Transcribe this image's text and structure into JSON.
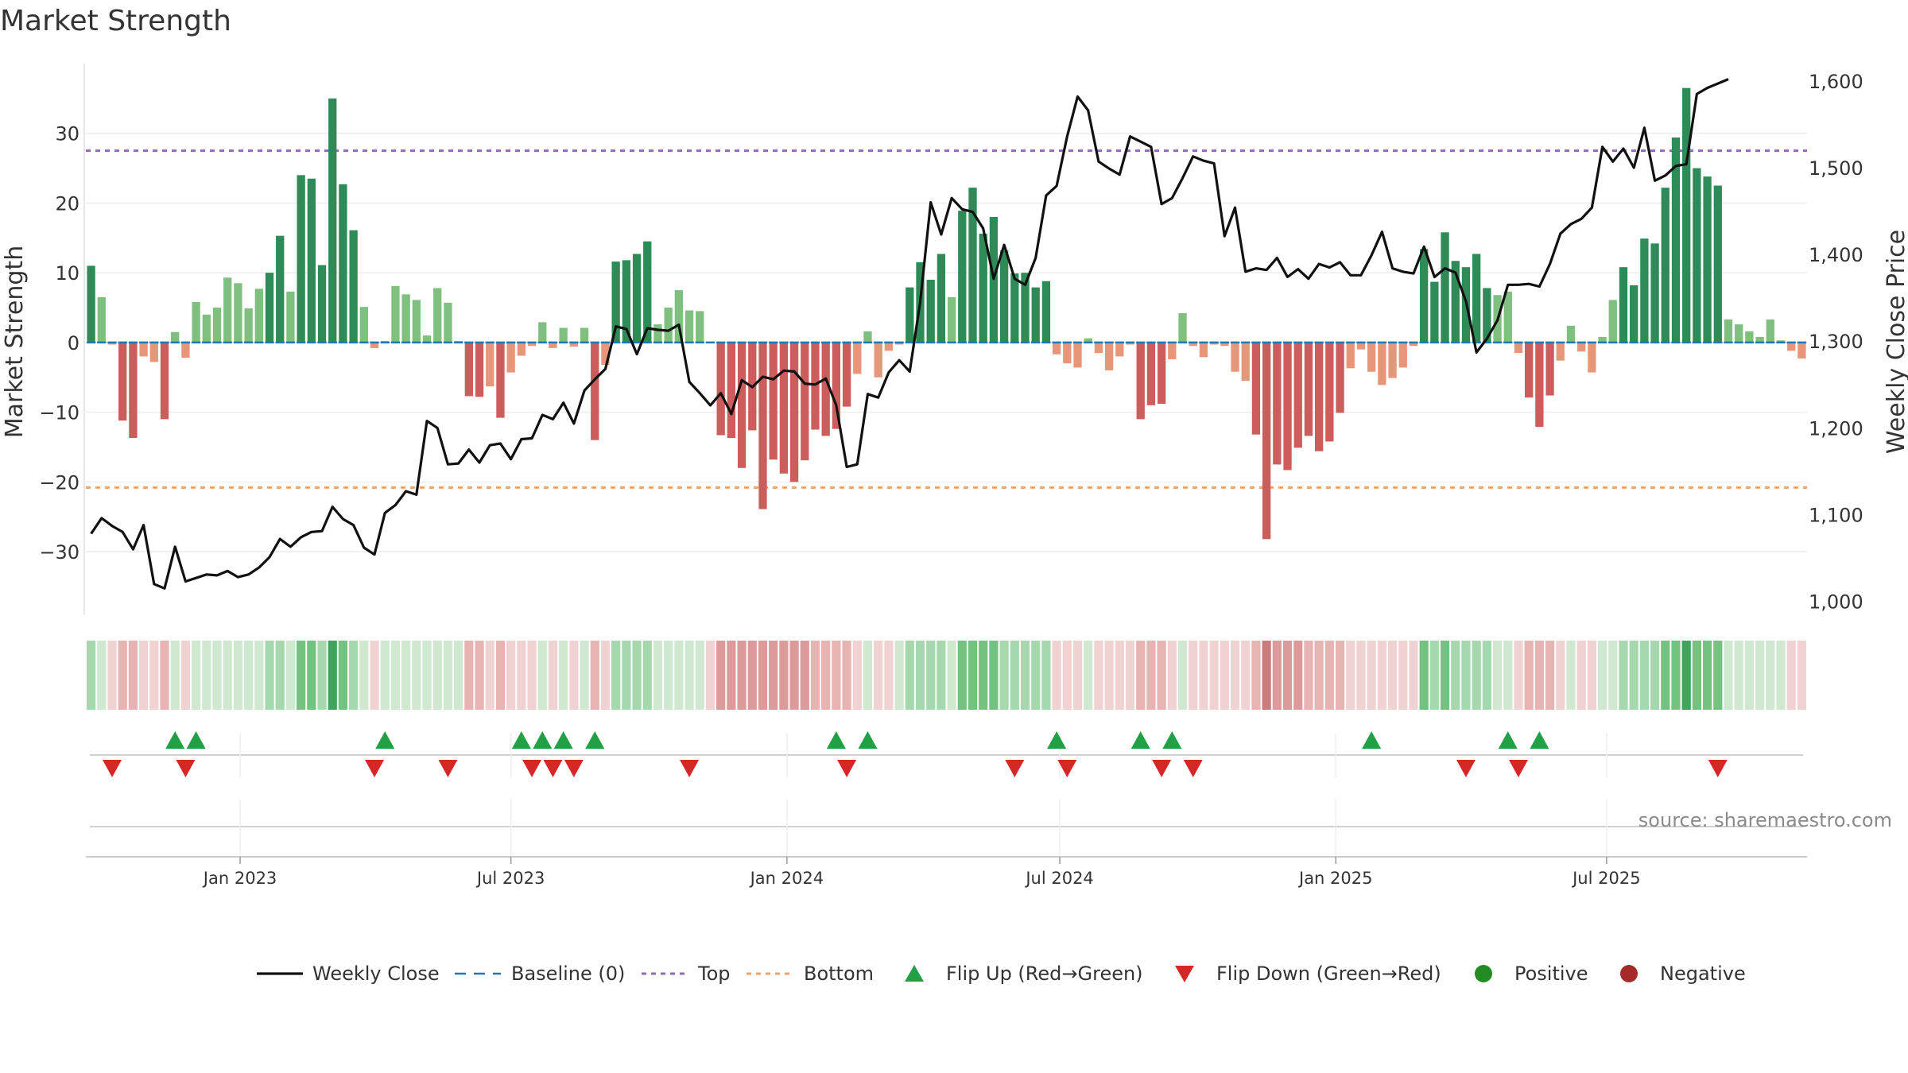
{
  "chart_data": {
    "type": "bar",
    "title": "Market Strength",
    "ylabel": "Market Strength",
    "y2label": "Weekly Close Price",
    "ylim": [
      -39,
      40
    ],
    "y2lim": [
      985,
      1620
    ],
    "yticks": [
      "−30",
      "−20",
      "−10",
      "0",
      "10",
      "20",
      "30"
    ],
    "ytick_values": [
      -30,
      -20,
      -10,
      0,
      10,
      20,
      30
    ],
    "y2ticks": [
      "1,000",
      "1,100",
      "1,200",
      "1,300",
      "1,400",
      "1,500",
      "1,600"
    ],
    "y2tick_values": [
      1000,
      1100,
      1200,
      1300,
      1400,
      1500,
      1600
    ],
    "xticks": [
      "Jan 2023",
      "Jul 2023",
      "Jan 2024",
      "Jul 2024",
      "Jan 2025",
      "Jul 2025"
    ],
    "xtick_index": [
      14.2,
      40.0,
      66.3,
      92.3,
      118.6,
      144.4
    ],
    "top_level": 27.5,
    "bottom_level": -20.8,
    "source": "source: sharemaestro.com",
    "strength": [
      11,
      6.5,
      -0.3,
      -11.2,
      -13.7,
      -2,
      -2.8,
      -11,
      1.5,
      -2.2,
      5.8,
      4,
      5,
      9.3,
      8.5,
      4.9,
      7.7,
      10,
      15.3,
      7.3,
      24,
      23.5,
      11.1,
      35,
      22.7,
      16.1,
      5.1,
      -0.8,
      0.2,
      8.1,
      6.9,
      6.1,
      1,
      7.8,
      5.7,
      0.2,
      -7.7,
      -7.8,
      -6.3,
      -10.8,
      -4.3,
      -1.9,
      -0.5,
      2.9,
      -0.8,
      2.1,
      -0.6,
      2.1,
      -14,
      -3.2,
      11.6,
      11.8,
      12.7,
      14.5,
      2.6,
      5,
      7.5,
      4.6,
      4.5,
      -0.1,
      -13.3,
      -13.7,
      -18,
      -12.6,
      -23.9,
      -16.8,
      -18.8,
      -20,
      -16.9,
      -12.5,
      -13.4,
      -12.4,
      -9.2,
      -4.5,
      1.6,
      -5,
      -1.2,
      -0.3,
      7.9,
      11.5,
      9,
      12.7,
      6.5,
      18.9,
      22.2,
      15.6,
      18,
      13.2,
      9.9,
      10,
      7.9,
      8.8,
      -1.7,
      -3,
      -3.6,
      0.6,
      -1.5,
      -4,
      -2,
      -0.3,
      -11,
      -9,
      -8.8,
      -2.4,
      4.2,
      -0.5,
      -2.1,
      -0.3,
      -0.5,
      -4.2,
      -5.5,
      -13.2,
      -28.2,
      -17.5,
      -18.3,
      -15.1,
      -13.4,
      -15.6,
      -14.2,
      -10.1,
      -3.7,
      -1,
      -4.2,
      -6.1,
      -5.1,
      -3.6,
      -0.5,
      13.4,
      8.7,
      15.8,
      11.7,
      10.8,
      12.7,
      7.8,
      6.8,
      7.3,
      -1.5,
      -7.9,
      -12.1,
      -7.6,
      -2.6,
      2.4,
      -1.3,
      -4.3,
      0.8,
      6.1,
      10.8,
      8.2,
      14.9,
      14.2,
      22.2,
      29.4,
      36.5,
      25,
      23.8,
      22.5,
      3.3,
      2.6,
      1.6,
      0.8,
      3.3,
      0.3,
      -1.2,
      -2.3
    ],
    "intensity": [
      2,
      1,
      -1,
      -2,
      -2,
      -1,
      -1,
      -2,
      1,
      -1,
      1,
      1,
      1,
      1,
      1,
      1,
      1,
      2,
      2,
      1,
      3,
      3,
      2,
      4,
      3,
      2,
      1,
      -1,
      1,
      1,
      1,
      1,
      1,
      1,
      1,
      1,
      -2,
      -2,
      -1,
      -2,
      -1,
      -1,
      -1,
      1,
      -1,
      1,
      -1,
      1,
      -2,
      -1,
      2,
      2,
      2,
      2,
      1,
      1,
      1,
      1,
      1,
      -1,
      -3,
      -3,
      -3,
      -3,
      -3,
      -3,
      -3,
      -3,
      -3,
      -2,
      -2,
      -2,
      -2,
      -1,
      1,
      -1,
      -1,
      1,
      2,
      2,
      2,
      2,
      1,
      3,
      3,
      3,
      3,
      2,
      2,
      2,
      2,
      2,
      -1,
      -1,
      -1,
      1,
      -1,
      -1,
      -1,
      -1,
      -2,
      -2,
      -2,
      -1,
      1,
      -1,
      -1,
      -1,
      -1,
      -1,
      -1,
      -2,
      -4,
      -3,
      -3,
      -3,
      -2,
      -2,
      -2,
      -2,
      -1,
      -1,
      -1,
      -1,
      -1,
      -1,
      -1,
      3,
      2,
      3,
      2,
      2,
      2,
      2,
      1,
      1,
      -1,
      -2,
      -2,
      -2,
      -1,
      1,
      -1,
      -1,
      1,
      1,
      2,
      2,
      2,
      2,
      3,
      3,
      4,
      3,
      3,
      3,
      1,
      1,
      1,
      1,
      1,
      1,
      -1,
      -1
    ],
    "weekly_close": [
      1078,
      1096,
      1087,
      1080,
      1060,
      1088,
      1020,
      1015,
      1063,
      1023,
      1027,
      1031,
      1030,
      1035,
      1028,
      1031,
      1039,
      1051,
      1072,
      1063,
      1074,
      1080,
      1081,
      1109,
      1095,
      1088,
      1062,
      1054,
      1102,
      1111,
      1127,
      1123,
      1208,
      1200,
      1158,
      1159,
      1175,
      1160,
      1180,
      1182,
      1164,
      1187,
      1188,
      1215,
      1210,
      1229,
      1205,
      1243,
      1256,
      1268,
      1317,
      1314,
      1285,
      1315,
      1313,
      1312,
      1319,
      1253,
      1240,
      1226,
      1240,
      1216,
      1255,
      1247,
      1259,
      1256,
      1266,
      1265,
      1251,
      1250,
      1257,
      1226,
      1155,
      1158,
      1239,
      1235,
      1264,
      1278,
      1265,
      1345,
      1460,
      1423,
      1465,
      1452,
      1449,
      1430,
      1372,
      1411,
      1372,
      1365,
      1396,
      1468,
      1479,
      1536,
      1582,
      1566,
      1507,
      1499,
      1492,
      1536,
      1530,
      1524,
      1458,
      1465,
      1488,
      1513,
      1508,
      1505,
      1421,
      1454,
      1380,
      1384,
      1382,
      1396,
      1374,
      1383,
      1372,
      1389,
      1385,
      1391,
      1376,
      1376,
      1399,
      1426,
      1384,
      1380,
      1378,
      1409,
      1374,
      1384,
      1379,
      1346,
      1287,
      1303,
      1324,
      1365,
      1365,
      1366,
      1363,
      1389,
      1424,
      1435,
      1441,
      1454,
      1524,
      1507,
      1522,
      1500,
      1546,
      1485,
      1491,
      1502,
      1504,
      1585,
      1592,
      1597,
      1602
    ],
    "flip_up": [
      8,
      10,
      28,
      41,
      43,
      45,
      48,
      71,
      74,
      92,
      100,
      103,
      122,
      135,
      138
    ],
    "flip_down": [
      2,
      9,
      27,
      34,
      42,
      44,
      46,
      57,
      72,
      88,
      93,
      102,
      105,
      131,
      136,
      155
    ],
    "legend": {
      "weekly_close": "Weekly Close",
      "baseline": "Baseline (0)",
      "top": "Top",
      "bottom": "Bottom",
      "flip_up": "Flip Up (Red→Green)",
      "flip_down": "Flip Down (Green→Red)",
      "positive": "Positive",
      "negative": "Negative"
    },
    "colors": {
      "pos_strong": "#2e8b57",
      "pos_light": "#7fbf7f",
      "neg_strong": "#cd5c5c",
      "neg_light": "#e8967a",
      "line": "#111111",
      "baseline": "#1f77b4",
      "top": "#9467bd",
      "bottom": "#f4a261",
      "flip_up": "#22a046",
      "flip_down": "#d62728",
      "positive": "#228b22",
      "negative": "#a52a2a",
      "heat_pos": [
        "#cfe8cf",
        "#a6d8ae",
        "#74c27f",
        "#3ea55a"
      ],
      "heat_neg": [
        "#f1d2d2",
        "#e8b3b3",
        "#dc9a9a",
        "#cc7c7c"
      ]
    }
  }
}
